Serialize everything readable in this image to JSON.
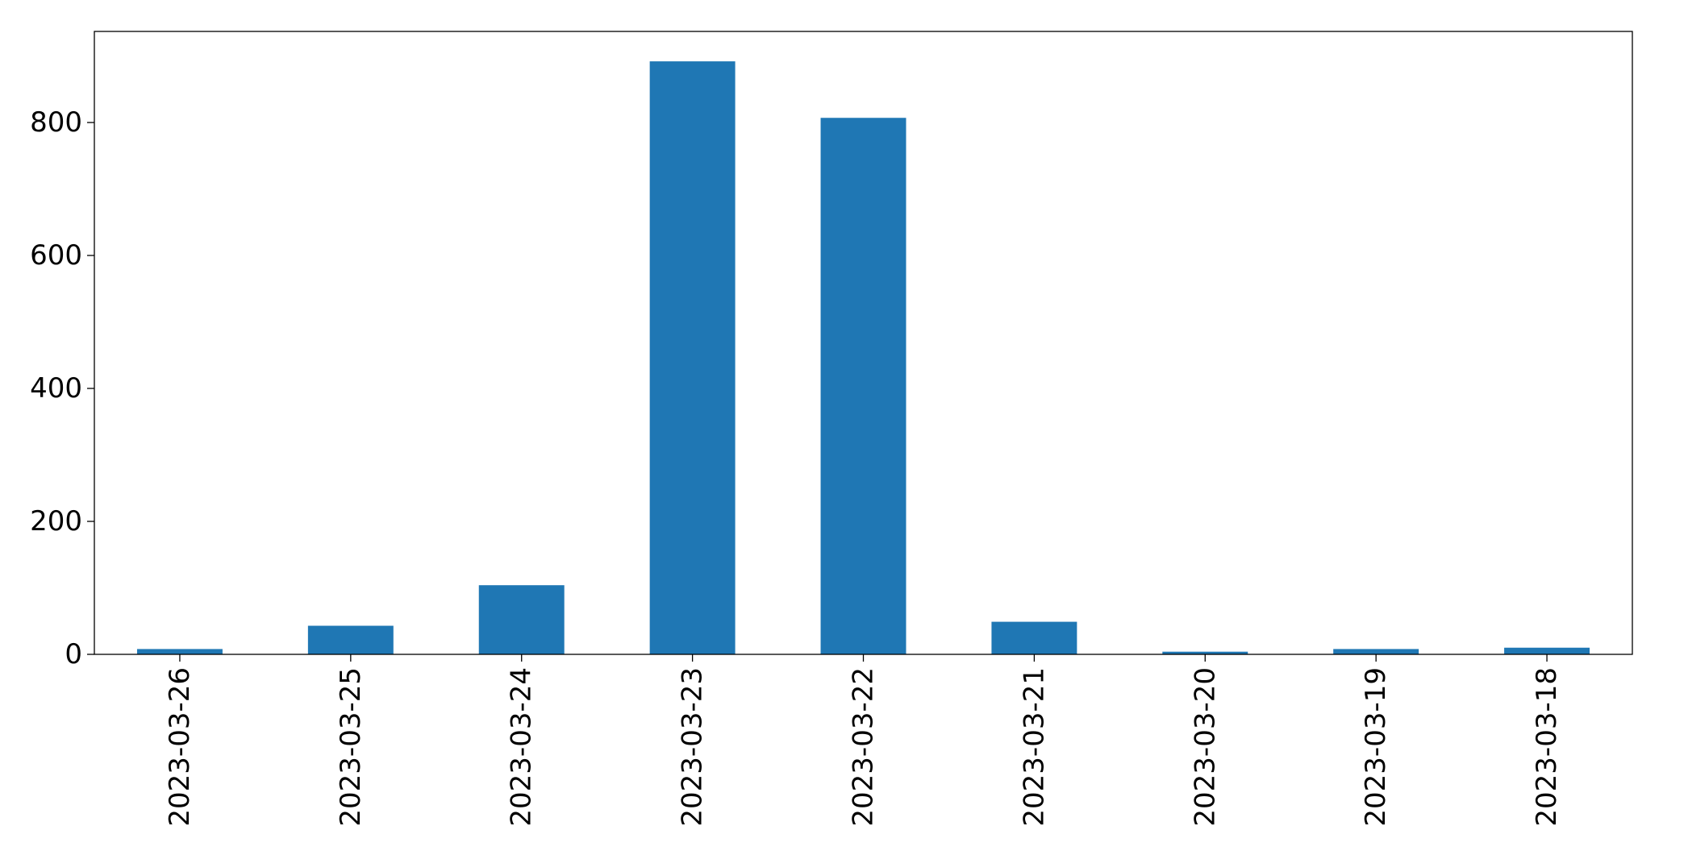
{
  "chart_data": {
    "type": "bar",
    "title": "",
    "xlabel": "",
    "ylabel": "",
    "categories": [
      "2023-03-26",
      "2023-03-25",
      "2023-03-24",
      "2023-03-23",
      "2023-03-22",
      "2023-03-21",
      "2023-03-20",
      "2023-03-19",
      "2023-03-18"
    ],
    "values": [
      8,
      43,
      104,
      892,
      807,
      49,
      4,
      8,
      10
    ],
    "ylim": [
      0,
      937
    ],
    "yticks": [
      0,
      200,
      400,
      600,
      800
    ],
    "ytick_labels": [
      "0",
      "200",
      "400",
      "600",
      "800"
    ],
    "grid": false,
    "legend": "none",
    "bar_color": "#1f77b4"
  }
}
